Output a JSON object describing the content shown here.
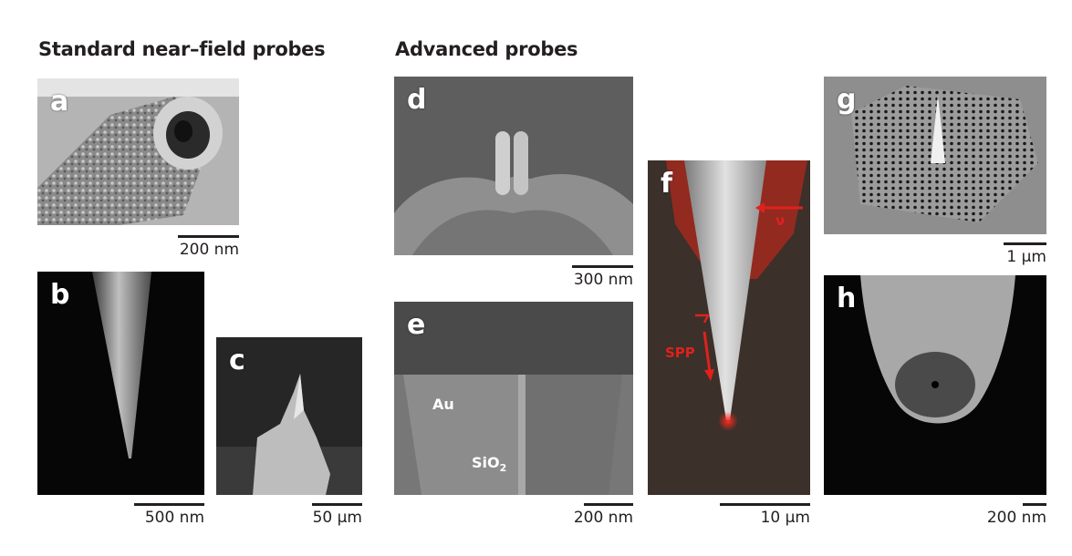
{
  "headings": {
    "standard": "Standard near–field probes",
    "advanced": "Advanced probes"
  },
  "panels": {
    "a": {
      "label": "a",
      "scale": "200 nm"
    },
    "b": {
      "label": "b",
      "scale": "500 nm"
    },
    "c": {
      "label": "c",
      "scale": "50 μm"
    },
    "d": {
      "label": "d",
      "scale": "300 nm"
    },
    "e": {
      "label": "e",
      "scale": "200 nm",
      "au_label": "Au",
      "sio2_base": "SiO",
      "sio2_sub": "2"
    },
    "f": {
      "label": "f",
      "scale": "10 μm",
      "spp_label": "SPP",
      "nu_label": "ν"
    },
    "g": {
      "label": "g",
      "scale": "1 μm"
    },
    "h": {
      "label": "h",
      "scale": "200 nm"
    }
  },
  "colors": {
    "text": "#231f20",
    "annotation_red": "#e0211d"
  }
}
